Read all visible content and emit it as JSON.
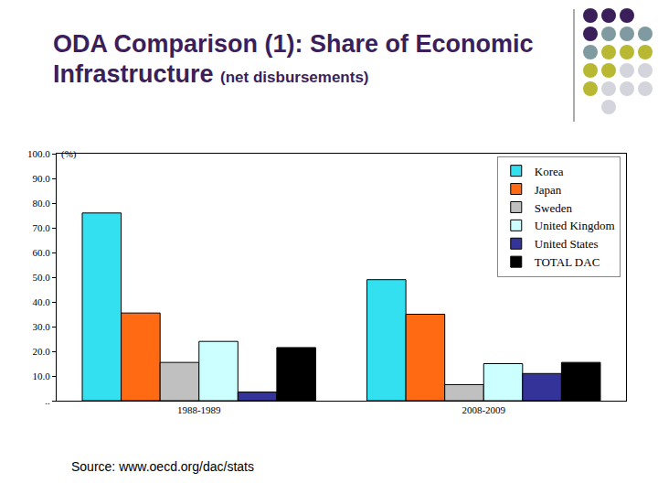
{
  "chart_data": {
    "type": "bar",
    "title": "ODA Comparison (1): Share of Economic Infrastructure",
    "subtitle": "(net disbursements)",
    "y_label": "(%)",
    "source": "Source: www.oecd.org/dac/stats",
    "categories": [
      "1988-1989",
      "2008-2009"
    ],
    "series": [
      {
        "name": "Korea",
        "color": "#33e0f0",
        "values": [
          76,
          49
        ]
      },
      {
        "name": "Japan",
        "color": "#ff6a13",
        "values": [
          35.5,
          35
        ]
      },
      {
        "name": "Sweden",
        "color": "#c0c0c0",
        "values": [
          15.5,
          6.5
        ]
      },
      {
        "name": "United Kingdom",
        "color": "#ccffff",
        "values": [
          24,
          15
        ]
      },
      {
        "name": "United States",
        "color": "#333399",
        "values": [
          3.5,
          11
        ]
      },
      {
        "name": "TOTAL DAC",
        "color": "#000000",
        "values": [
          21.5,
          15.5
        ]
      }
    ],
    "ylim": [
      0,
      100
    ],
    "yticks": [
      {
        "value": 0,
        "label": ".."
      },
      {
        "value": 10,
        "label": "10.0"
      },
      {
        "value": 20,
        "label": "20.0"
      },
      {
        "value": 30,
        "label": "30.0"
      },
      {
        "value": 40,
        "label": "40.0"
      },
      {
        "value": 50,
        "label": "50.0"
      },
      {
        "value": 60,
        "label": "60.0"
      },
      {
        "value": 70,
        "label": "70.0"
      },
      {
        "value": 80,
        "label": "80.0"
      },
      {
        "value": 90,
        "label": "90.0"
      },
      {
        "value": 100,
        "label": "100.0"
      }
    ],
    "grid": false,
    "legend": "top-right"
  }
}
